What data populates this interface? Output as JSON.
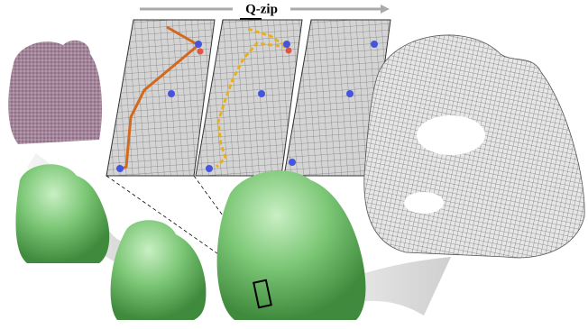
{
  "figure": {
    "title": "Q-zip"
  }
}
